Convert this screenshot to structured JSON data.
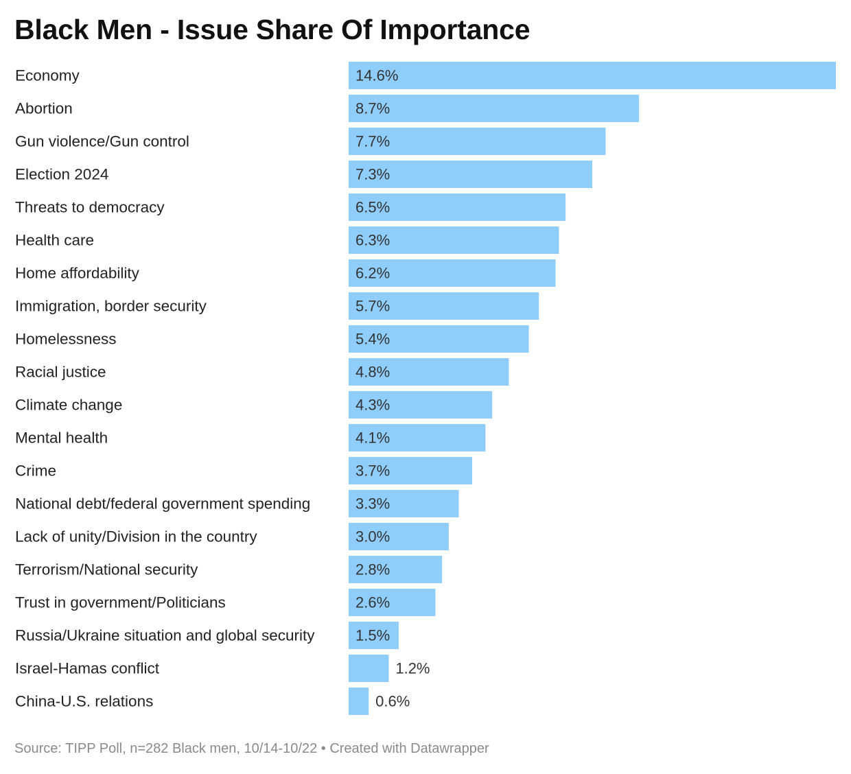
{
  "chart_data": {
    "type": "bar",
    "orientation": "horizontal",
    "title": "Black Men - Issue Share Of Importance",
    "categories": [
      "Economy",
      "Abortion",
      "Gun violence/Gun control",
      "Election 2024",
      "Threats to democracy",
      "Health care",
      "Home affordability",
      "Immigration, border security",
      "Homelessness",
      "Racial justice",
      "Climate change",
      "Mental health",
      "Crime",
      "National debt/federal government spending",
      "Lack of unity/Division in the country",
      "Terrorism/National security",
      "Trust in government/Politicians",
      "Russia/Ukraine situation and global security",
      "Israel-Hamas conflict",
      "China-U.S. relations"
    ],
    "values": [
      14.6,
      8.7,
      7.7,
      7.3,
      6.5,
      6.3,
      6.2,
      5.7,
      5.4,
      4.8,
      4.3,
      4.1,
      3.7,
      3.3,
      3.0,
      2.8,
      2.6,
      1.5,
      1.2,
      0.6
    ],
    "value_labels": [
      "14.6%",
      "8.7%",
      "7.7%",
      "7.3%",
      "6.5%",
      "6.3%",
      "6.2%",
      "5.7%",
      "5.4%",
      "4.8%",
      "4.3%",
      "4.1%",
      "3.7%",
      "3.3%",
      "3.0%",
      "2.8%",
      "2.6%",
      "1.5%",
      "1.2%",
      "0.6%"
    ],
    "unit": "%",
    "xlim": [
      0,
      14.6
    ],
    "bar_color": "#8ecdfc",
    "grid": false
  },
  "footer": "Source: TIPP Poll, n=282 Black men, 10/14-10/22 • Created with Datawrapper"
}
